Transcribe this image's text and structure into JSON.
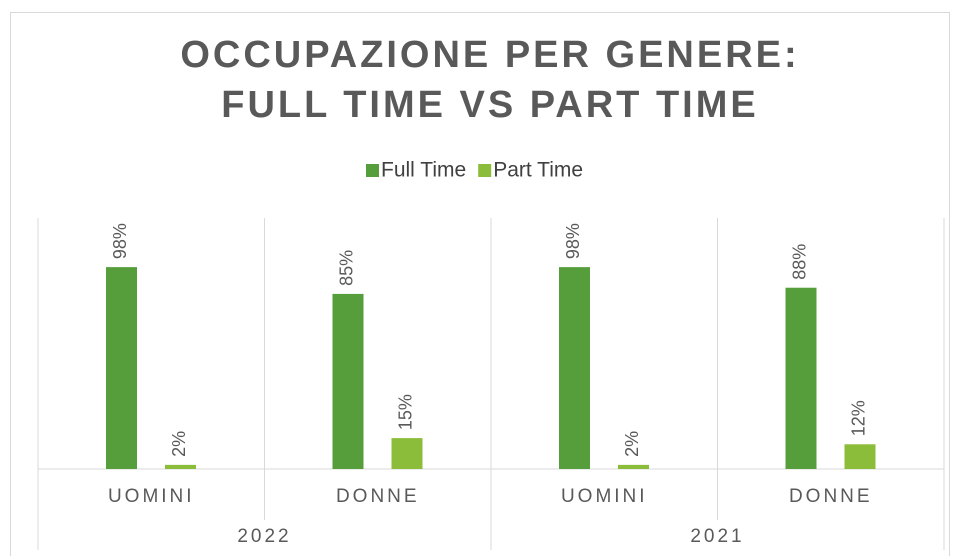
{
  "chart_data": {
    "type": "bar",
    "title": [
      "OCCUPAZIONE PER GENERE:",
      "FULL TIME VS PART TIME"
    ],
    "categories": [
      "UOMINI",
      "DONNE",
      "UOMINI",
      "DONNE"
    ],
    "groups": [
      "2022",
      "2021"
    ],
    "series": [
      {
        "name": "Full Time",
        "color": "#559e3b",
        "values": [
          98,
          85,
          98,
          88
        ],
        "value_labels": [
          "98%",
          "85%",
          "98%",
          "88%"
        ]
      },
      {
        "name": "Part Time",
        "color": "#8cbd3a",
        "values": [
          2,
          15,
          2,
          12
        ],
        "value_labels": [
          "2%",
          "15%",
          "2%",
          "12%"
        ]
      }
    ]
  }
}
